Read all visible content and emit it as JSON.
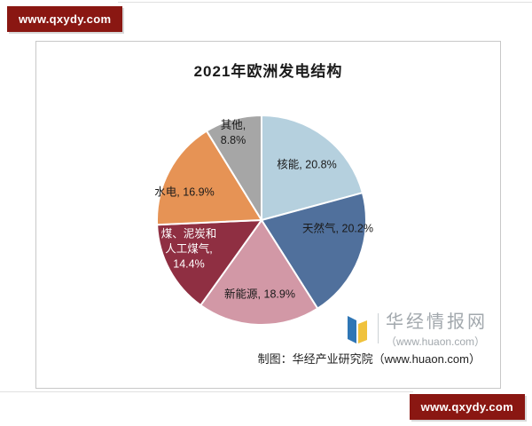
{
  "watermarks": {
    "top_left": "www.qxydy.com",
    "bottom_right": "www.qxydy.com"
  },
  "chart": {
    "caption": "制图：华经产业研究院（www.huaon.com）",
    "logo": {
      "name": "华经情报网",
      "url": "（www.huaon.com）"
    }
  },
  "chart_data": {
    "type": "pie",
    "title": "2021年欧洲发电结构",
    "unit": "%",
    "start_angle_deg": 0,
    "direction": "clockwise",
    "legend": "none",
    "slices": [
      {
        "label": "核能",
        "value": 20.8,
        "color": "#b5d0de",
        "text_color": "#1a1a1a",
        "label_lines": [
          "核能, 20.8%"
        ]
      },
      {
        "label": "天然气",
        "value": 20.2,
        "color": "#50709c",
        "text_color": "#1a1a1a",
        "label_lines": [
          "天然气, 20.2%"
        ]
      },
      {
        "label": "新能源",
        "value": 18.9,
        "color": "#d298a6",
        "text_color": "#1a1a1a",
        "label_lines": [
          "新能源, 18.9%"
        ]
      },
      {
        "label": "煤、泥炭和人工煤气",
        "value": 14.4,
        "color": "#8f2f42",
        "text_color": "#ffffff",
        "label_lines": [
          "煤、泥炭和",
          "人工煤气,",
          "14.4%"
        ]
      },
      {
        "label": "水电",
        "value": 16.9,
        "color": "#e69355",
        "text_color": "#1a1a1a",
        "label_lines": [
          "水电, 16.9%"
        ]
      },
      {
        "label": "其他",
        "value": 8.8,
        "color": "#a6a6a6",
        "text_color": "#1a1a1a",
        "label_lines": [
          "其他,",
          "8.8%"
        ]
      }
    ]
  }
}
